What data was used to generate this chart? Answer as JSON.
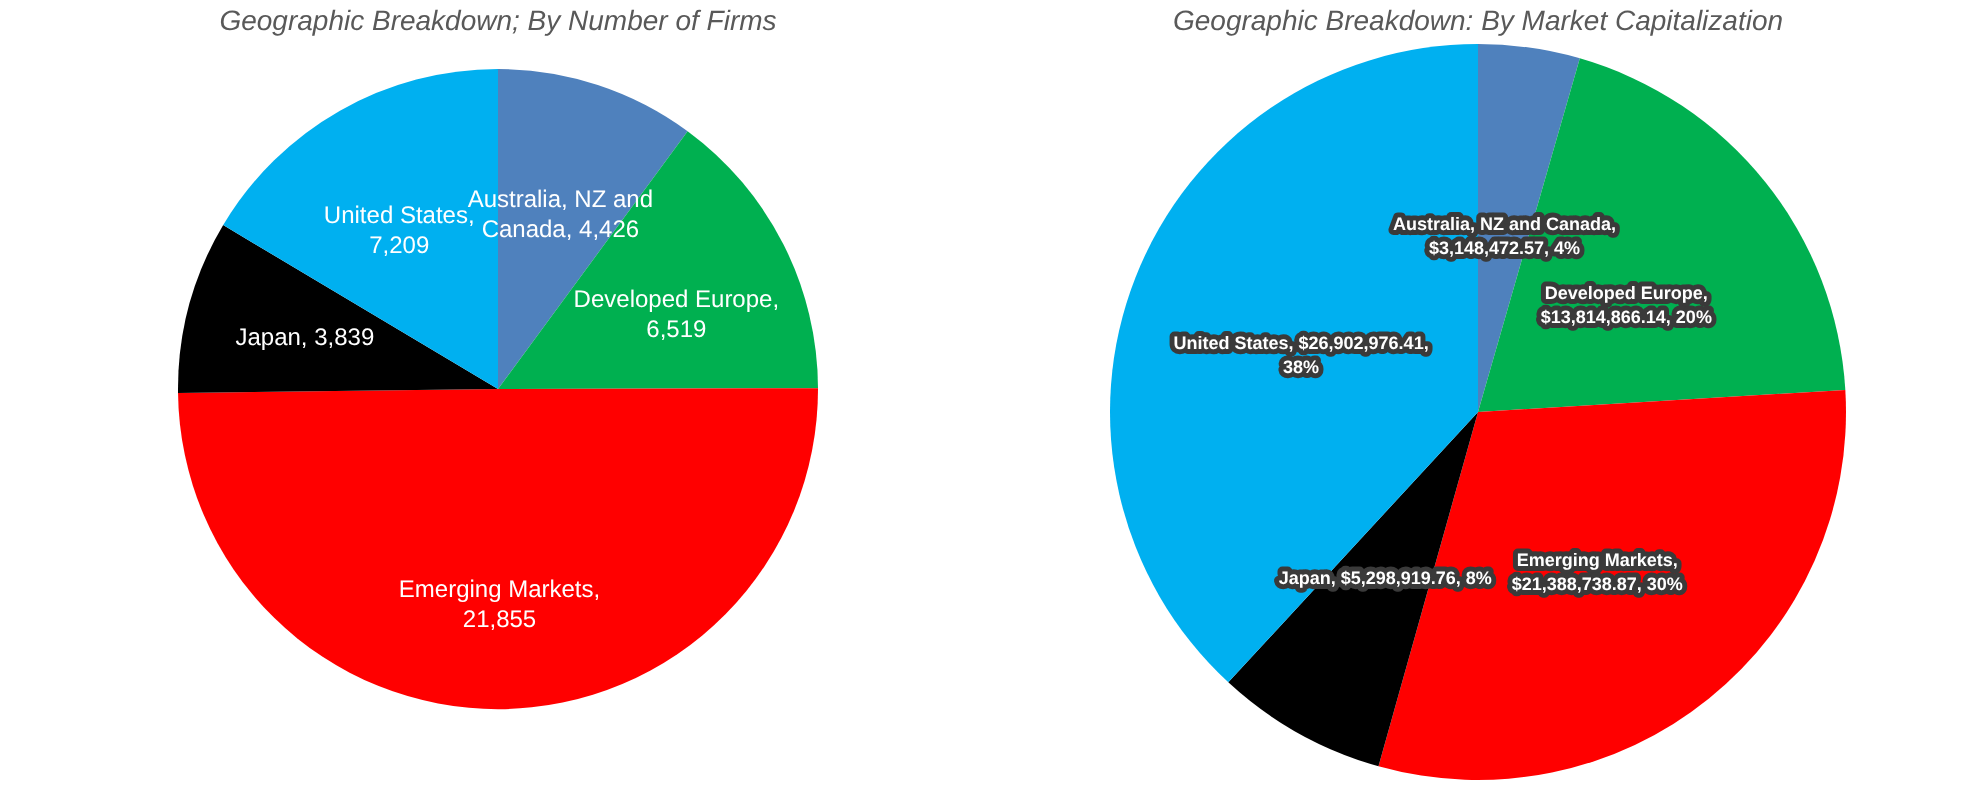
{
  "chart_data": [
    {
      "type": "pie",
      "title": "Geographic Breakdown; By Number of Firms",
      "categories": [
        "Australia, NZ and Canada",
        "Developed Europe",
        "Emerging Markets",
        "Japan",
        "United States"
      ],
      "values": [
        4426,
        6519,
        21855,
        3839,
        7209
      ],
      "colors": [
        "#4f81bd",
        "#00b050",
        "#ff0000",
        "#000000",
        "#00b0f0"
      ],
      "value_labels": [
        ", 4,426",
        ", 6,519",
        ", 21,855",
        ", 3,839",
        ", 7,209"
      ]
    },
    {
      "type": "pie",
      "title": "Geographic Breakdown: By Market Capitalization",
      "categories": [
        "Australia, NZ and Canada",
        "Developed Europe",
        "Emerging Markets",
        "Japan",
        "United States"
      ],
      "values": [
        3148472.57,
        13814866.14,
        21388738.87,
        5298919.76,
        26902976.41
      ],
      "colors": [
        "#4f81bd",
        "#00b050",
        "#ff0000",
        "#000000",
        "#00b0f0"
      ],
      "value_labels": [
        ", $3,148,472.57, 4%",
        ", $13,814,866.14, 20%",
        ", $21,388,738.87, 30%",
        ", $5,298,919.76, 8%",
        ", $26,902,976.41, 38%"
      ]
    }
  ]
}
